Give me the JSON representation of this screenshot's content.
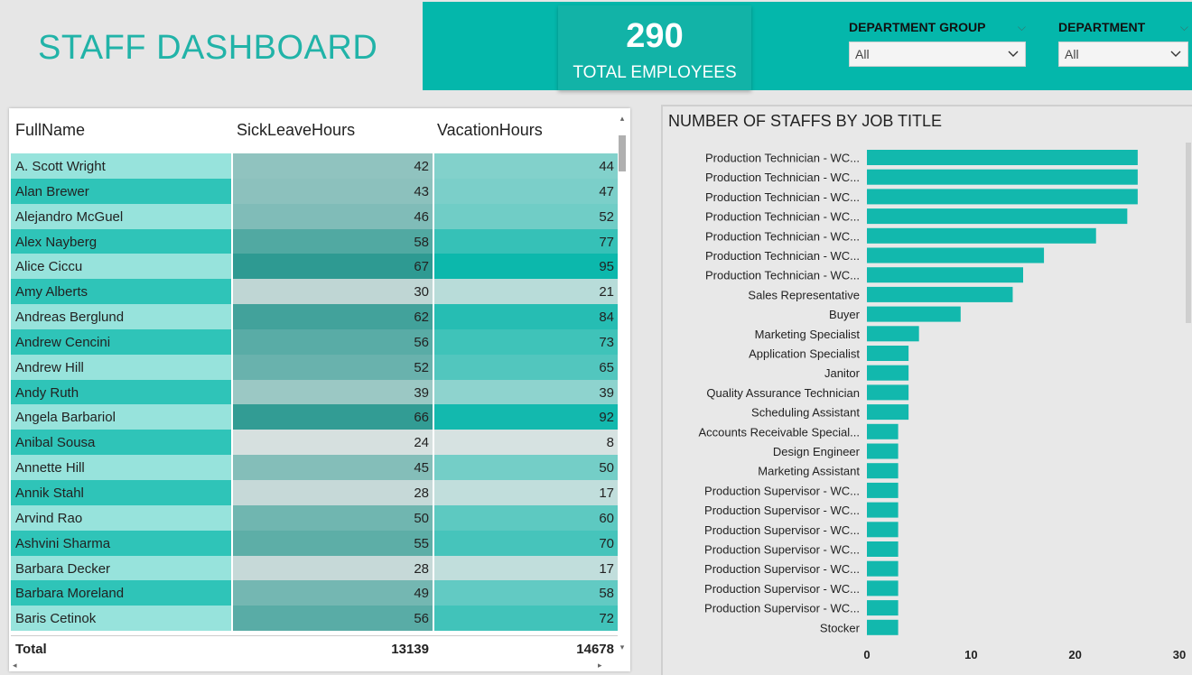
{
  "header": {
    "title": "STAFF DASHBOARD",
    "kpi_value": "290",
    "kpi_label": "TOTAL EMPLOYEES"
  },
  "slicers": [
    {
      "label": "DEPARTMENT GROUP",
      "value": "All"
    },
    {
      "label": "DEPARTMENT",
      "value": "All"
    }
  ],
  "table": {
    "columns": [
      "FullName",
      "SickLeaveHours",
      "VacationHours"
    ],
    "rows": [
      {
        "name": "A. Scott Wright",
        "sick": 42,
        "vac": 44
      },
      {
        "name": "Alan Brewer",
        "sick": 43,
        "vac": 47
      },
      {
        "name": "Alejandro McGuel",
        "sick": 46,
        "vac": 52
      },
      {
        "name": "Alex Nayberg",
        "sick": 58,
        "vac": 77
      },
      {
        "name": "Alice Ciccu",
        "sick": 67,
        "vac": 95
      },
      {
        "name": "Amy Alberts",
        "sick": 30,
        "vac": 21
      },
      {
        "name": "Andreas Berglund",
        "sick": 62,
        "vac": 84
      },
      {
        "name": "Andrew Cencini",
        "sick": 56,
        "vac": 73
      },
      {
        "name": "Andrew Hill",
        "sick": 52,
        "vac": 65
      },
      {
        "name": "Andy Ruth",
        "sick": 39,
        "vac": 39
      },
      {
        "name": "Angela Barbariol",
        "sick": 66,
        "vac": 92
      },
      {
        "name": "Anibal Sousa",
        "sick": 24,
        "vac": 8
      },
      {
        "name": "Annette Hill",
        "sick": 45,
        "vac": 50
      },
      {
        "name": "Annik Stahl",
        "sick": 28,
        "vac": 17
      },
      {
        "name": "Arvind Rao",
        "sick": 50,
        "vac": 60
      },
      {
        "name": "Ashvini Sharma",
        "sick": 55,
        "vac": 70
      },
      {
        "name": "Barbara Decker",
        "sick": 28,
        "vac": 17
      },
      {
        "name": "Barbara Moreland",
        "sick": 49,
        "vac": 58
      },
      {
        "name": "Baris Cetinok",
        "sick": 56,
        "vac": 72
      }
    ],
    "total_label": "Total",
    "total_sick": "13139",
    "total_vac": "14678"
  },
  "colors": {
    "accent": "#04b7ab",
    "bar": "#12b8ad",
    "name_light": "#97e3dc",
    "name_dark": "#2fc4b8"
  },
  "chart_data": {
    "type": "bar",
    "orientation": "horizontal",
    "title": "NUMBER OF STAFFS BY JOB TITLE",
    "categories": [
      "Production Technician - WC...",
      "Production Technician - WC...",
      "Production Technician - WC...",
      "Production Technician - WC...",
      "Production Technician - WC...",
      "Production Technician - WC...",
      "Production Technician - WC...",
      "Sales Representative",
      "Buyer",
      "Marketing Specialist",
      "Application Specialist",
      "Janitor",
      "Quality Assurance Technician",
      "Scheduling Assistant",
      "Accounts Receivable Special...",
      "Design Engineer",
      "Marketing Assistant",
      "Production Supervisor - WC...",
      "Production Supervisor - WC...",
      "Production Supervisor - WC...",
      "Production Supervisor - WC...",
      "Production Supervisor - WC...",
      "Production Supervisor - WC...",
      "Production Supervisor - WC...",
      "Stocker"
    ],
    "values": [
      26,
      26,
      26,
      25,
      22,
      17,
      15,
      14,
      9,
      5,
      4,
      4,
      4,
      4,
      3,
      3,
      3,
      3,
      3,
      3,
      3,
      3,
      3,
      3,
      3
    ],
    "xlim": [
      0,
      30
    ],
    "xticks": [
      "0",
      "10",
      "20",
      "30"
    ]
  }
}
